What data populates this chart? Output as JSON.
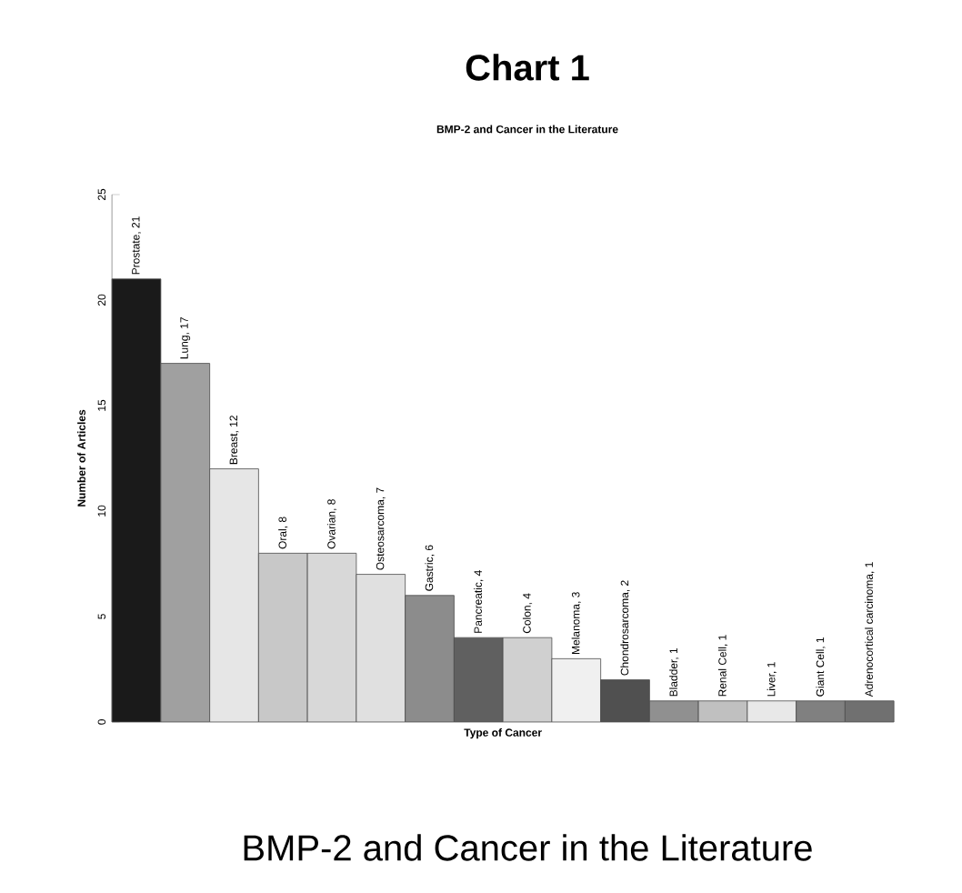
{
  "chart_data": {
    "type": "bar",
    "title": "Chart 1",
    "subtitle": "BMP-2 and Cancer in the Literature",
    "xlabel": "Type of Cancer",
    "ylabel": "Number of Articles",
    "categories": [
      null,
      null,
      null,
      null,
      null,
      null,
      null,
      null,
      null,
      null,
      null,
      null,
      null,
      null,
      null,
      null
    ],
    "values": [
      21,
      17,
      12,
      8,
      8,
      7,
      6,
      4,
      4,
      3,
      2,
      1,
      1,
      1,
      1,
      1
    ],
    "value_labels": [
      "Prostate, 21",
      "Lung, 17",
      "Breast, 12",
      "Oral, 8",
      "Ovarian, 8",
      "Osteosarcoma, 7",
      "Gastric, 6",
      "Pancreatic, 4",
      "Colon, 4",
      "Melanoma, 3",
      "Chondrosarcoma, 2",
      "Bladder, 1",
      "Renal Cell, 1",
      "Liver, 1",
      "Giant Cell, 1",
      "Adrenocortical carcinoma, 1"
    ],
    "colors": [
      "#1a1a1a",
      "#a0a0a0",
      "#e6e6e6",
      "#c8c8c8",
      "#d8d8d8",
      "#e0e0e0",
      "#8c8c8c",
      "#606060",
      "#d0d0d0",
      "#f0f0f0",
      "#505050",
      "#909090",
      "#c0c0c0",
      "#e8e8e8",
      "#808080",
      "#707070"
    ],
    "ylim": [
      0,
      25
    ],
    "yticks": [
      0,
      5,
      10,
      15,
      20,
      25
    ],
    "annotations": [
      "BMP-2 and Cancer in the Literature"
    ]
  }
}
